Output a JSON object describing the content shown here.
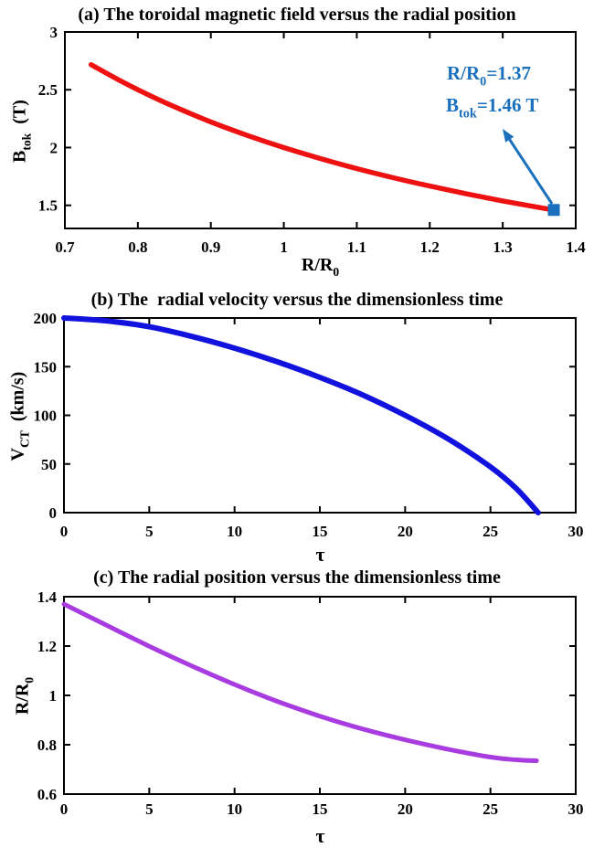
{
  "figure": {
    "background": "#ffffff",
    "axis_color": "#000000",
    "text_color": "#000000",
    "annotation_color": "#1a70bd"
  },
  "chart_data": [
    {
      "type": "line",
      "title": "(a) The toroidal magnetic field versus the radial position",
      "xlabel": "R/R0",
      "ylabel": "B_tok (T)",
      "xlabel_segments": [
        {
          "t": "R/R"
        },
        {
          "t": "0",
          "sub": true
        }
      ],
      "ylabel_segments": [
        {
          "t": "B"
        },
        {
          "t": "tok",
          "sub": true
        },
        {
          "t": "  (T)"
        }
      ],
      "xlim": [
        0.7,
        1.4
      ],
      "ylim": [
        1.3,
        3
      ],
      "grid": false,
      "legend": "none",
      "xticks": {
        "values": [
          0.7,
          0.8,
          0.9,
          1,
          1.1,
          1.2,
          1.3,
          1.4
        ],
        "labels": [
          "0.7",
          "0.8",
          "0.9",
          "1",
          "1.1",
          "1.2",
          "1.3",
          "1.4"
        ]
      },
      "yticks": {
        "values": [
          1.5,
          2,
          2.5,
          3
        ],
        "labels": [
          "1.5",
          "2",
          "2.5",
          "3"
        ]
      },
      "series": [
        {
          "name": "B_tok",
          "color": "#ee1111",
          "width": 5.5,
          "x": [
            0.736,
            0.78,
            0.82,
            0.86,
            0.9,
            0.95,
            1.0,
            1.05,
            1.1,
            1.15,
            1.2,
            1.25,
            1.3,
            1.35,
            1.37
          ],
          "y": [
            2.717,
            2.564,
            2.439,
            2.326,
            2.222,
            2.105,
            2.0,
            1.905,
            1.818,
            1.739,
            1.667,
            1.6,
            1.538,
            1.481,
            1.46
          ]
        }
      ],
      "annotation": {
        "lines": [
          [
            {
              "t": "R/R"
            },
            {
              "t": "0",
              "sub": true
            },
            {
              "t": "=1.37"
            }
          ],
          [
            {
              "t": "B"
            },
            {
              "t": "tok",
              "sub": true
            },
            {
              "t": "=1.46 T"
            }
          ]
        ],
        "point": {
          "x": 1.37,
          "y": 1.46
        },
        "marker": "filled-square",
        "color": "#1a70bd"
      }
    },
    {
      "type": "line",
      "title": "(b) The  radial velocity versus the dimensionless time",
      "xlabel": "τ",
      "ylabel": "V_CT (km/s)",
      "xlabel_segments": [
        {
          "t": "τ"
        }
      ],
      "ylabel_segments": [
        {
          "t": "V"
        },
        {
          "t": "CT",
          "sub": true
        },
        {
          "t": "  (km/s)"
        }
      ],
      "xlim": [
        0,
        30
      ],
      "ylim": [
        0,
        200
      ],
      "grid": false,
      "legend": "none",
      "xticks": {
        "values": [
          0,
          5,
          10,
          15,
          20,
          25,
          30
        ],
        "labels": [
          "0",
          "5",
          "10",
          "15",
          "20",
          "25",
          "30"
        ]
      },
      "yticks": {
        "values": [
          0,
          50,
          100,
          150,
          200
        ],
        "labels": [
          "0",
          "50",
          "100",
          "150",
          "200"
        ]
      },
      "series": [
        {
          "name": "V_CT",
          "color": "#1212df",
          "width": 6,
          "x": [
            0,
            2.5,
            5,
            7.5,
            10,
            12.5,
            15,
            17.5,
            20,
            22.5,
            25,
            26.5,
            27.8
          ],
          "y": [
            200,
            197,
            191,
            181,
            169,
            155,
            139,
            121,
            100,
            76,
            47,
            25,
            0
          ]
        }
      ]
    },
    {
      "type": "line",
      "title": "(c) The radial position versus the dimensionless time",
      "xlabel": "τ",
      "ylabel": "R/R0",
      "xlabel_segments": [
        {
          "t": "τ"
        }
      ],
      "ylabel_segments": [
        {
          "t": "R/R"
        },
        {
          "t": "0",
          "sub": true
        }
      ],
      "xlim": [
        0,
        30
      ],
      "ylim": [
        0.6,
        1.4
      ],
      "grid": false,
      "legend": "none",
      "xticks": {
        "values": [
          0,
          5,
          10,
          15,
          20,
          25,
          30
        ],
        "labels": [
          "0",
          "5",
          "10",
          "15",
          "20",
          "25",
          "30"
        ]
      },
      "yticks": {
        "values": [
          0.6,
          0.8,
          1,
          1.2,
          1.4
        ],
        "labels": [
          "0.6",
          "0.8",
          "1",
          "1.2",
          "1.4"
        ]
      },
      "series": [
        {
          "name": "R/R0",
          "color": "#a93ce1",
          "width": 5,
          "x": [
            0,
            2.5,
            5,
            7.5,
            10,
            12.5,
            15,
            17.5,
            20,
            22.5,
            25,
            26.5,
            27.7
          ],
          "y": [
            1.37,
            1.284,
            1.199,
            1.119,
            1.044,
            0.976,
            0.916,
            0.864,
            0.82,
            0.782,
            0.75,
            0.739,
            0.735
          ]
        }
      ]
    }
  ]
}
